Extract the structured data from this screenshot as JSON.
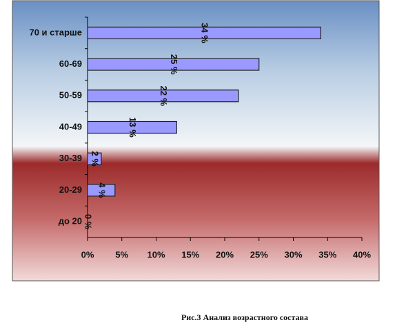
{
  "chart_data": {
    "type": "hbar",
    "categories": [
      "70 и старше",
      "60-69",
      "50-59",
      "40-49",
      "30-39",
      "20-29",
      "до 20"
    ],
    "values": [
      34,
      25,
      22,
      13,
      2,
      4,
      0
    ],
    "value_labels": [
      "34 %",
      "25 %",
      "22 %",
      "13 %",
      "2 %",
      "4 %",
      "0 %"
    ],
    "color": "#9999ff",
    "xlim": [
      0,
      40
    ],
    "xticks": [
      {
        "value": 0,
        "label": "0%"
      },
      {
        "value": 5,
        "label": "5%"
      },
      {
        "value": 10,
        "label": "10%"
      },
      {
        "value": 15,
        "label": "15%"
      },
      {
        "value": 20,
        "label": "20%"
      },
      {
        "value": 25,
        "label": "25%"
      },
      {
        "value": 30,
        "label": "30%"
      },
      {
        "value": 35,
        "label": "35%"
      },
      {
        "value": 40,
        "label": "40%"
      }
    ],
    "caption": "Рис.3 Анализ возрастного состава"
  }
}
